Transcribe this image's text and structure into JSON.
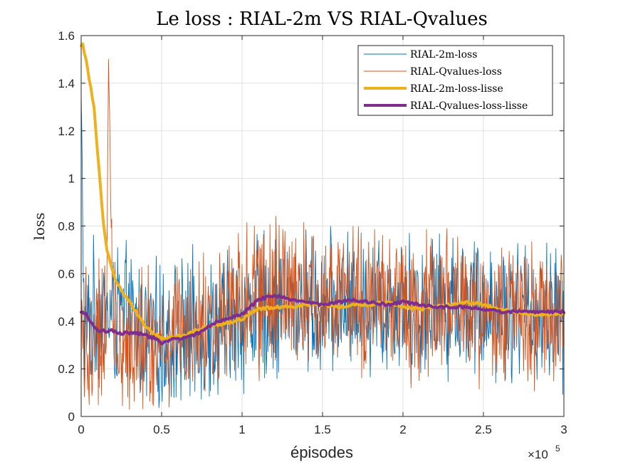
{
  "chart_data": {
    "type": "line",
    "title": "Le loss : RIAL-2m VS RIAL-Qvalues",
    "xlabel": "épisodes",
    "ylabel": "loss",
    "x_exponent_label": "×10",
    "x_exponent_power": "5",
    "xlim": [
      0,
      300000
    ],
    "ylim": [
      0,
      1.6
    ],
    "x_ticks": [
      0,
      50000,
      100000,
      150000,
      200000,
      250000,
      300000
    ],
    "x_tick_labels": [
      "0",
      "0.5",
      "1",
      "1.5",
      "2",
      "2.5",
      "3"
    ],
    "y_ticks": [
      0,
      0.2,
      0.4,
      0.6,
      0.8,
      1.0,
      1.2,
      1.4,
      1.6
    ],
    "y_tick_labels": [
      "0",
      "0.2",
      "0.4",
      "0.6",
      "0.8",
      "1",
      "1.2",
      "1.4",
      "1.6"
    ],
    "grid": true,
    "legend_position": "top-right",
    "series": [
      {
        "name": "RIAL-2m-loss",
        "color": "#0072BD",
        "style": "noisy",
        "x": [
          0,
          2000,
          5000,
          10000,
          20000,
          30000,
          40000,
          50000,
          60000,
          70000,
          80000,
          90000,
          100000,
          110000,
          120000,
          130000,
          150000,
          170000,
          190000,
          210000,
          230000,
          250000,
          270000,
          290000,
          300000
        ],
        "y": [
          1.35,
          0.3,
          0.4,
          0.45,
          0.42,
          0.4,
          0.35,
          0.32,
          0.35,
          0.36,
          0.38,
          0.38,
          0.42,
          0.46,
          0.47,
          0.47,
          0.46,
          0.47,
          0.48,
          0.46,
          0.48,
          0.47,
          0.45,
          0.43,
          0.42
        ],
        "amplitude": [
          0.05,
          0.25,
          0.25,
          0.25,
          0.25,
          0.25,
          0.25,
          0.26,
          0.26,
          0.26,
          0.26,
          0.26,
          0.26,
          0.26,
          0.26,
          0.25,
          0.25,
          0.25,
          0.25,
          0.25,
          0.25,
          0.25,
          0.25,
          0.25,
          0.25
        ]
      },
      {
        "name": "RIAL-Qvalues-loss",
        "color": "#D95319",
        "style": "noisy",
        "x": [
          0,
          5000,
          10000,
          16000,
          17000,
          20000,
          30000,
          40000,
          50000,
          60000,
          70000,
          80000,
          90000,
          100000,
          110000,
          120000,
          130000,
          150000,
          170000,
          190000,
          210000,
          230000,
          250000,
          270000,
          290000,
          300000
        ],
        "y": [
          0.4,
          0.37,
          0.36,
          0.36,
          1.5,
          0.36,
          0.35,
          0.33,
          0.31,
          0.33,
          0.35,
          0.39,
          0.42,
          0.44,
          0.49,
          0.5,
          0.49,
          0.48,
          0.48,
          0.47,
          0.46,
          0.46,
          0.45,
          0.44,
          0.44,
          0.44
        ],
        "amplitude": [
          0.25,
          0.28,
          0.28,
          0.28,
          0.0,
          0.28,
          0.27,
          0.26,
          0.26,
          0.26,
          0.26,
          0.28,
          0.28,
          0.27,
          0.27,
          0.27,
          0.27,
          0.26,
          0.26,
          0.26,
          0.26,
          0.26,
          0.26,
          0.26,
          0.26,
          0.26
        ]
      },
      {
        "name": "RIAL-2m-loss-lisse",
        "color": "#EDB120",
        "style": "smooth",
        "x": [
          0,
          1000,
          3000,
          5000,
          8000,
          10000,
          12000,
          14000,
          16000,
          18000,
          20000,
          23000,
          26000,
          30000,
          35000,
          40000,
          45000,
          50000,
          55000,
          60000,
          65000,
          70000,
          80000,
          90000,
          100000,
          110000,
          120000,
          130000,
          140000,
          150000,
          160000,
          170000,
          180000,
          190000,
          200000,
          210000,
          220000,
          230000,
          240000,
          250000,
          260000,
          270000,
          280000,
          290000,
          300000
        ],
        "y": [
          1.56,
          1.56,
          1.5,
          1.42,
          1.3,
          1.12,
          0.96,
          0.8,
          0.7,
          0.65,
          0.6,
          0.55,
          0.52,
          0.48,
          0.43,
          0.38,
          0.35,
          0.33,
          0.33,
          0.34,
          0.34,
          0.36,
          0.38,
          0.39,
          0.41,
          0.45,
          0.46,
          0.46,
          0.47,
          0.47,
          0.46,
          0.47,
          0.47,
          0.48,
          0.46,
          0.45,
          0.46,
          0.47,
          0.48,
          0.47,
          0.45,
          0.44,
          0.43,
          0.43,
          0.43
        ]
      },
      {
        "name": "RIAL-Qvalues-loss-lisse",
        "color": "#7E2F8E",
        "style": "smooth",
        "x": [
          0,
          3000,
          6000,
          10000,
          15000,
          20000,
          25000,
          30000,
          35000,
          40000,
          45000,
          50000,
          55000,
          60000,
          65000,
          70000,
          75000,
          80000,
          85000,
          90000,
          95000,
          100000,
          105000,
          110000,
          115000,
          120000,
          125000,
          130000,
          140000,
          150000,
          160000,
          170000,
          180000,
          190000,
          200000,
          210000,
          220000,
          230000,
          240000,
          250000,
          260000,
          270000,
          280000,
          290000,
          300000
        ],
        "y": [
          0.44,
          0.43,
          0.4,
          0.36,
          0.36,
          0.36,
          0.35,
          0.35,
          0.35,
          0.34,
          0.33,
          0.31,
          0.32,
          0.33,
          0.33,
          0.34,
          0.36,
          0.38,
          0.4,
          0.41,
          0.42,
          0.43,
          0.46,
          0.49,
          0.5,
          0.51,
          0.5,
          0.49,
          0.48,
          0.47,
          0.48,
          0.49,
          0.48,
          0.47,
          0.48,
          0.47,
          0.46,
          0.46,
          0.46,
          0.45,
          0.44,
          0.44,
          0.44,
          0.44,
          0.44
        ]
      }
    ]
  }
}
